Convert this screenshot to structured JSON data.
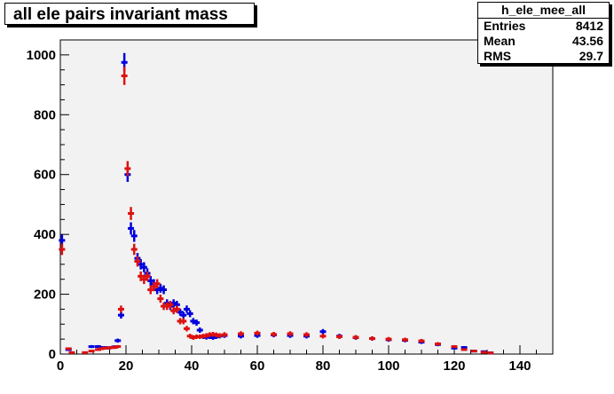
{
  "title": "all ele pairs invariant mass",
  "stats": {
    "name": "h_ele_mee_all",
    "rows": [
      {
        "label": "Entries",
        "value": "8412"
      },
      {
        "label": "Mean",
        "value": "43.56"
      },
      {
        "label": "RMS",
        "value": "29.7"
      }
    ]
  },
  "colors": {
    "frame_bg": "#f2f2f2",
    "series_blue": "#0000dd",
    "series_red": "#dd1111"
  },
  "chart_data": {
    "type": "scatter",
    "title": "all ele pairs invariant mass",
    "xlim": [
      0,
      150
    ],
    "ylim": [
      0,
      1050
    ],
    "xticks": [
      0,
      20,
      40,
      60,
      80,
      100,
      120,
      140
    ],
    "yticks": [
      0,
      200,
      400,
      600,
      800,
      1000
    ],
    "grid": false,
    "bin_width": 1,
    "series": [
      {
        "x": [
          0.5,
          2.5,
          9.5,
          11.5,
          12.5,
          13.5,
          14.5,
          15.5,
          16.5,
          17.5,
          18.5,
          19.5,
          20.5,
          21.5,
          22.5,
          23.5,
          24.5,
          25.5,
          26.5,
          27.5,
          28.5,
          29.5,
          30.5,
          31.5,
          32.5,
          33.5,
          34.5,
          35.5,
          36.5,
          37.5,
          38.5,
          39.5,
          40.5,
          41.5,
          42.5,
          43.5,
          44.5,
          45.5,
          46.5,
          47.5,
          48.5,
          50,
          55,
          60,
          65,
          70,
          75,
          80,
          85,
          90,
          95,
          100,
          105,
          110,
          115,
          120,
          123,
          126,
          129,
          131
        ],
        "values": [
          380,
          15,
          25,
          25,
          22,
          22,
          20,
          22,
          24,
          45,
          130,
          975,
          600,
          420,
          395,
          320,
          300,
          290,
          270,
          245,
          235,
          215,
          220,
          215,
          170,
          160,
          170,
          165,
          140,
          130,
          150,
          135,
          110,
          105,
          80,
          58,
          56,
          58,
          55,
          58,
          60,
          62,
          60,
          62,
          64,
          62,
          60,
          75,
          60,
          55,
          52,
          48,
          46,
          40,
          32,
          20,
          22,
          10,
          8,
          4
        ]
      },
      {
        "x": [
          0.5,
          2.5,
          3.5,
          7.5,
          9.5,
          11.5,
          12.5,
          13.5,
          14.5,
          15.5,
          16.5,
          17.5,
          18.5,
          19.5,
          20.5,
          21.5,
          22.5,
          23.5,
          24.5,
          25.5,
          26.5,
          27.5,
          28.5,
          29.5,
          30.5,
          31.5,
          32.5,
          33.5,
          34.5,
          35.5,
          36.5,
          37.5,
          38.5,
          39.5,
          40.5,
          41.5,
          42.5,
          43.5,
          44.5,
          45.5,
          46.5,
          47.5,
          48.5,
          50,
          55,
          60,
          65,
          70,
          75,
          80,
          85,
          90,
          95,
          100,
          105,
          110,
          115,
          120,
          123,
          126,
          129,
          131
        ],
        "values": [
          350,
          18,
          5,
          5,
          10,
          15,
          18,
          20,
          20,
          22,
          22,
          25,
          150,
          930,
          620,
          470,
          350,
          310,
          260,
          250,
          260,
          215,
          225,
          235,
          185,
          160,
          160,
          165,
          145,
          150,
          110,
          110,
          85,
          60,
          55,
          58,
          58,
          60,
          62,
          65,
          66,
          64,
          62,
          65,
          68,
          70,
          66,
          68,
          65,
          60,
          58,
          56,
          52,
          50,
          48,
          44,
          34,
          25,
          15,
          10,
          6,
          4
        ]
      }
    ]
  }
}
